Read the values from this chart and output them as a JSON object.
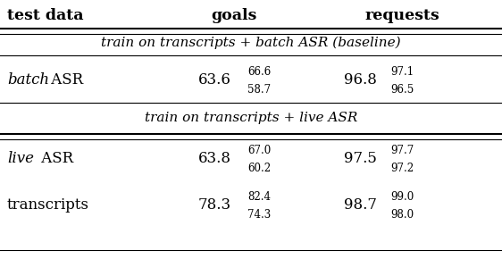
{
  "header": [
    "test data",
    "goals",
    "requests"
  ],
  "section1_label": "train on transcripts + batch ASR (baseline)",
  "section1_rows": [
    {
      "name_italic": "batch",
      "name_rest": " ASR",
      "goals_main": "63.6",
      "goals_sup": "66.6",
      "goals_sub": "58.7",
      "req_main": "96.8",
      "req_sup": "97.1",
      "req_sub": "96.5"
    }
  ],
  "section2_label": "train on transcripts + live ASR",
  "section2_rows": [
    {
      "name_italic": "live",
      "name_rest": " ASR",
      "goals_main": "63.8",
      "goals_sup": "67.0",
      "goals_sub": "60.2",
      "req_main": "97.5",
      "req_sup": "97.7",
      "req_sub": "97.2"
    },
    {
      "name_italic": "",
      "name_rest": "transcripts",
      "goals_main": "78.3",
      "goals_sup": "82.4",
      "goals_sub": "74.3",
      "req_main": "98.7",
      "req_sup": "99.0",
      "req_sub": "98.0"
    }
  ],
  "bg_color": "white",
  "font_size_header": 12.5,
  "font_size_main": 12,
  "font_size_small": 8.5,
  "font_size_section": 11
}
